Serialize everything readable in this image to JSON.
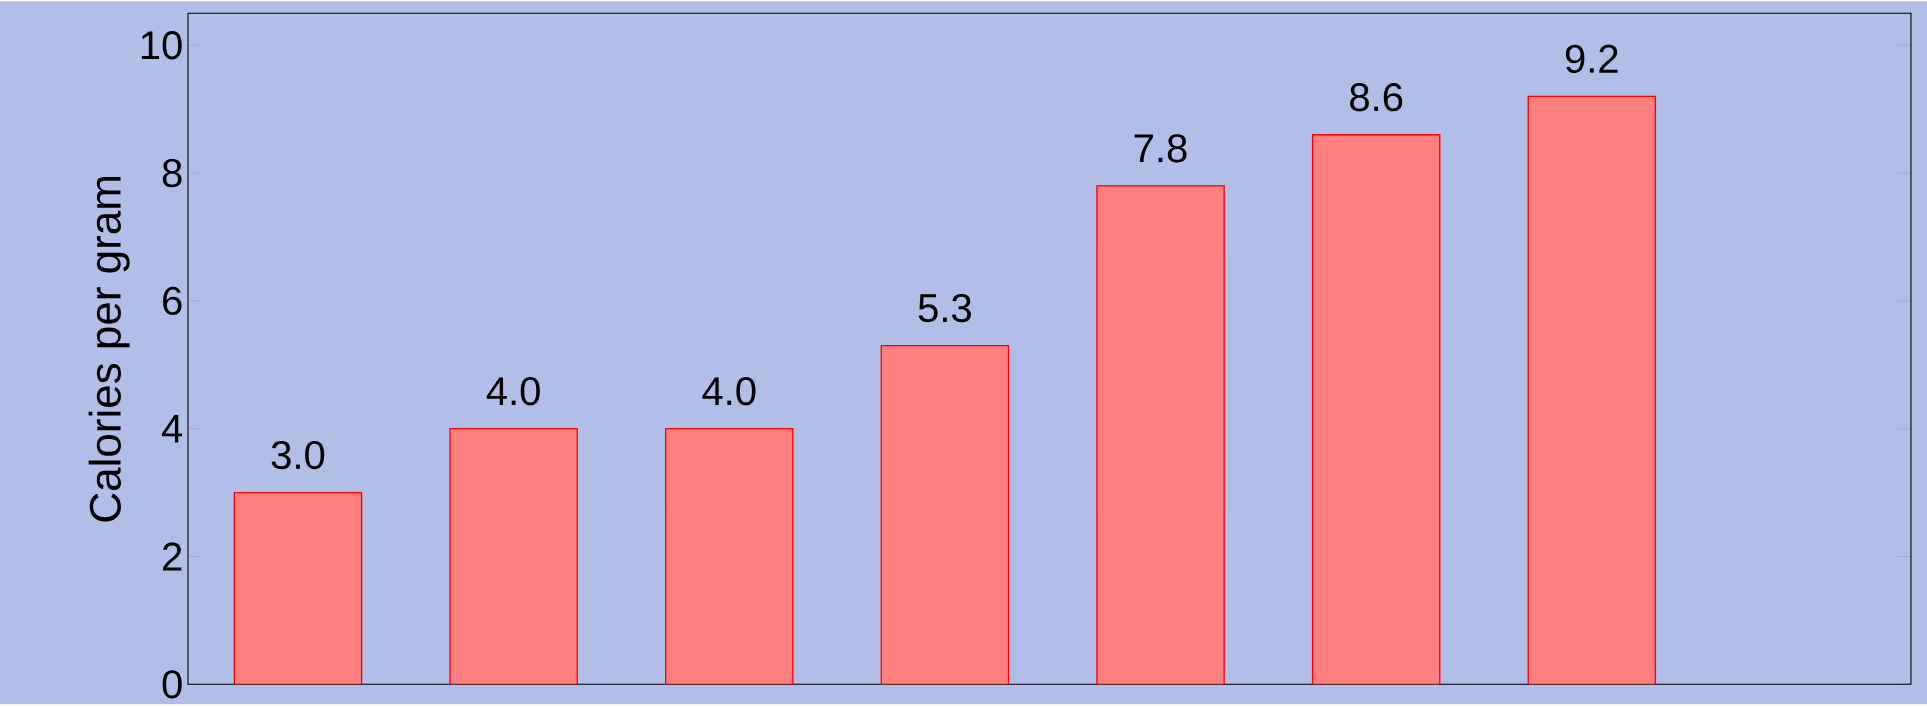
{
  "chart_data": {
    "type": "bar",
    "ylabel": "Calories per gram",
    "categories": [
      null,
      null,
      null,
      null,
      null,
      null,
      null
    ],
    "values": [
      3.0,
      4.0,
      4.0,
      5.3,
      7.8,
      8.6,
      9.2
    ],
    "value_labels": [
      "3.0",
      "4.0",
      "4.0",
      "5.3",
      "7.8",
      "8.6",
      "9.2"
    ],
    "color": "#ff7f7f",
    "ylim": [
      0,
      10.5
    ],
    "yticks": [
      0,
      2,
      4,
      6,
      8,
      10
    ],
    "tick_labels": "y"
  }
}
